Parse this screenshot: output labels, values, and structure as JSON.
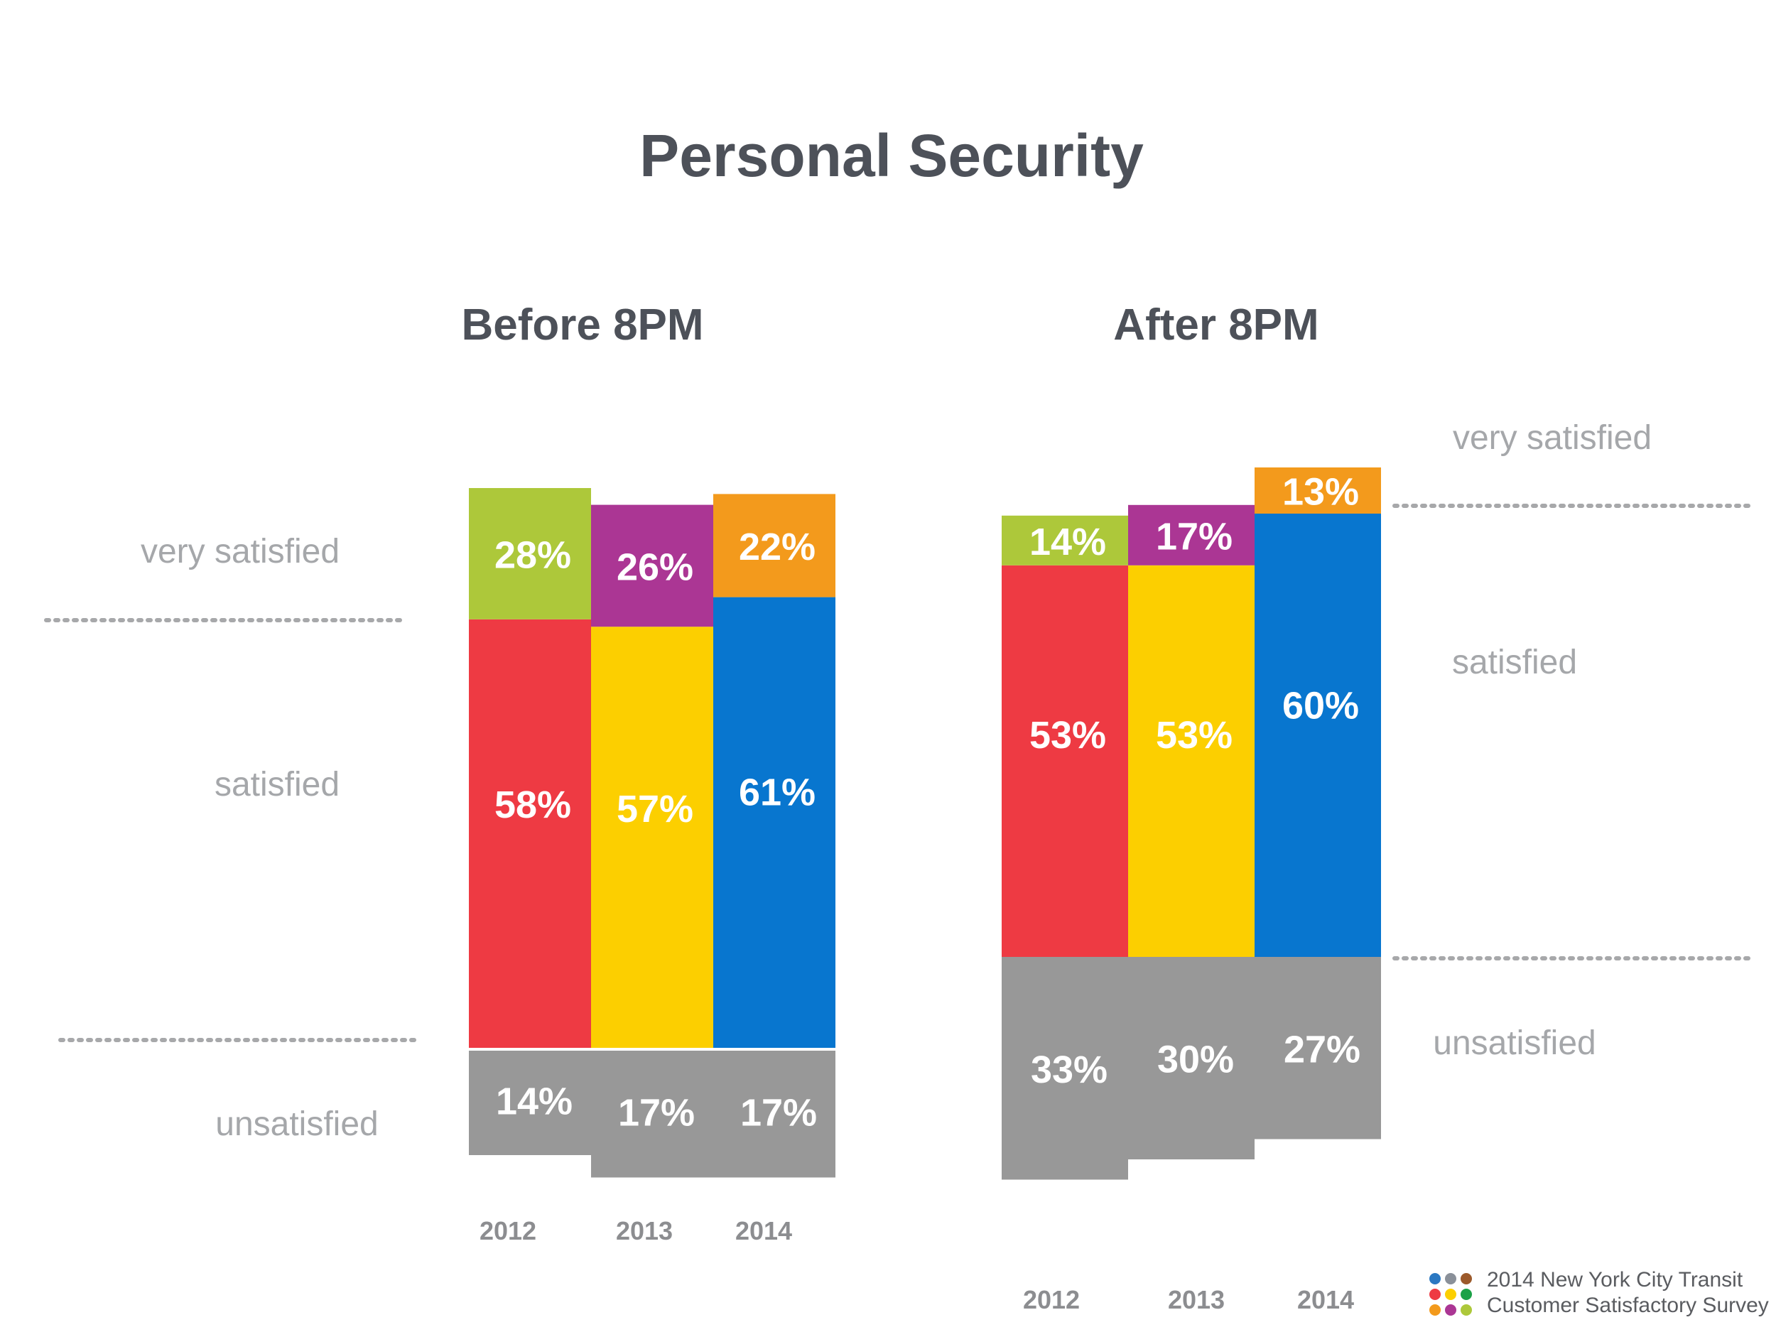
{
  "chart_data": {
    "type": "bar",
    "stacked": "diverging",
    "title": "Personal Security",
    "categories": [
      "2012",
      "2013",
      "2014"
    ],
    "bands": [
      "very satisfied",
      "satisfied",
      "unsatisfied"
    ],
    "panels": [
      {
        "title": "Before 8PM",
        "series": [
          {
            "name": "very satisfied",
            "values": [
              28,
              26,
              22
            ],
            "labels": [
              "28%",
              "26%",
              "22%"
            ]
          },
          {
            "name": "satisfied",
            "values": [
              58,
              57,
              61
            ],
            "labels": [
              "58%",
              "57%",
              "61%"
            ]
          },
          {
            "name": "unsatisfied",
            "values": [
              14,
              17,
              17
            ],
            "labels": [
              "14%",
              "17%",
              "17%"
            ]
          }
        ]
      },
      {
        "title": "After 8PM",
        "series": [
          {
            "name": "very satisfied",
            "values": [
              14,
              17,
              13
            ],
            "labels": [
              "14%",
              "17%",
              "13%"
            ]
          },
          {
            "name": "satisfied",
            "values": [
              53,
              53,
              60
            ],
            "labels": [
              "53%",
              "53%",
              "60%"
            ]
          },
          {
            "name": "unsatisfied",
            "values": [
              33,
              30,
              27
            ],
            "labels": [
              "33%",
              "30%",
              "27%"
            ]
          }
        ]
      }
    ]
  },
  "colors": {
    "very_satisfied": [
      "#adc83a",
      "#ab3694",
      "#f39a1c"
    ],
    "satisfied": [
      "#ee3a43",
      "#fccf00",
      "#0876cf"
    ],
    "unsatisfied": "#989898"
  },
  "footer": {
    "line1": "2014 New York City Transit",
    "line2": "Customer Satisfactory Survey",
    "logo_dot_colors": [
      "#2b78c2",
      "#8a9099",
      "#9c5a2b",
      "#ee3a43",
      "#fccf00",
      "#1ba147",
      "#f39a1c",
      "#ab3694",
      "#adc83a"
    ]
  }
}
